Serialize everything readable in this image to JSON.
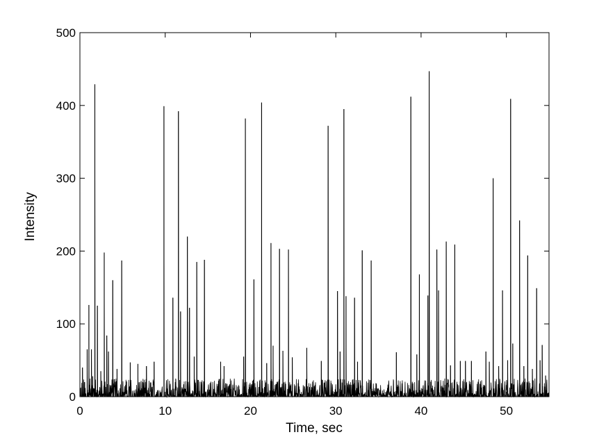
{
  "chart_data": {
    "type": "line",
    "title": "",
    "xlabel": "Time, sec",
    "ylabel": "Intensity",
    "xlim": [
      0,
      55
    ],
    "ylim": [
      0,
      500
    ],
    "xticks": [
      0,
      10,
      20,
      30,
      40,
      50
    ],
    "yticks": [
      0,
      100,
      200,
      300,
      400,
      500
    ],
    "xtick_labels": [
      "0",
      "10",
      "20",
      "30",
      "40",
      "50"
    ],
    "ytick_labels": [
      "0",
      "100",
      "200",
      "300",
      "400",
      "500"
    ],
    "grid": false,
    "legend": "none",
    "line_color": "#000000",
    "baseline_noise_max": 25,
    "series": [
      {
        "spikes": [
          {
            "x": 0.3,
            "y": 40
          },
          {
            "x": 0.55,
            "y": 20
          },
          {
            "x": 0.85,
            "y": 65
          },
          {
            "x": 1.05,
            "y": 126
          },
          {
            "x": 1.35,
            "y": 65
          },
          {
            "x": 1.5,
            "y": 28
          },
          {
            "x": 1.75,
            "y": 429
          },
          {
            "x": 2.05,
            "y": 125
          },
          {
            "x": 2.45,
            "y": 35
          },
          {
            "x": 2.85,
            "y": 198
          },
          {
            "x": 3.15,
            "y": 84
          },
          {
            "x": 3.35,
            "y": 62
          },
          {
            "x": 3.85,
            "y": 160
          },
          {
            "x": 4.35,
            "y": 38
          },
          {
            "x": 4.9,
            "y": 187
          },
          {
            "x": 5.9,
            "y": 47
          },
          {
            "x": 6.8,
            "y": 45
          },
          {
            "x": 7.8,
            "y": 42
          },
          {
            "x": 8.7,
            "y": 48
          },
          {
            "x": 9.85,
            "y": 399
          },
          {
            "x": 10.9,
            "y": 136
          },
          {
            "x": 11.55,
            "y": 392
          },
          {
            "x": 11.8,
            "y": 117
          },
          {
            "x": 12.6,
            "y": 220
          },
          {
            "x": 12.85,
            "y": 122
          },
          {
            "x": 13.4,
            "y": 55
          },
          {
            "x": 13.7,
            "y": 185
          },
          {
            "x": 14.6,
            "y": 188
          },
          {
            "x": 16.5,
            "y": 48
          },
          {
            "x": 16.9,
            "y": 42
          },
          {
            "x": 19.2,
            "y": 55
          },
          {
            "x": 19.4,
            "y": 382
          },
          {
            "x": 20.4,
            "y": 161
          },
          {
            "x": 21.3,
            "y": 404
          },
          {
            "x": 21.9,
            "y": 46
          },
          {
            "x": 22.4,
            "y": 211
          },
          {
            "x": 22.65,
            "y": 70
          },
          {
            "x": 23.4,
            "y": 203
          },
          {
            "x": 23.8,
            "y": 63
          },
          {
            "x": 24.45,
            "y": 202
          },
          {
            "x": 24.9,
            "y": 54
          },
          {
            "x": 26.6,
            "y": 67
          },
          {
            "x": 28.3,
            "y": 49
          },
          {
            "x": 29.1,
            "y": 372
          },
          {
            "x": 30.2,
            "y": 145
          },
          {
            "x": 30.5,
            "y": 62
          },
          {
            "x": 30.95,
            "y": 395
          },
          {
            "x": 31.2,
            "y": 138
          },
          {
            "x": 32.2,
            "y": 136
          },
          {
            "x": 32.55,
            "y": 48
          },
          {
            "x": 33.1,
            "y": 201
          },
          {
            "x": 34.15,
            "y": 187
          },
          {
            "x": 37.1,
            "y": 61
          },
          {
            "x": 38.8,
            "y": 412
          },
          {
            "x": 39.5,
            "y": 58
          },
          {
            "x": 39.8,
            "y": 168
          },
          {
            "x": 40.8,
            "y": 139
          },
          {
            "x": 40.95,
            "y": 447
          },
          {
            "x": 41.85,
            "y": 202
          },
          {
            "x": 42.05,
            "y": 146
          },
          {
            "x": 42.95,
            "y": 213
          },
          {
            "x": 43.45,
            "y": 43
          },
          {
            "x": 43.95,
            "y": 209
          },
          {
            "x": 44.6,
            "y": 49
          },
          {
            "x": 45.2,
            "y": 49
          },
          {
            "x": 45.9,
            "y": 49
          },
          {
            "x": 47.6,
            "y": 62
          },
          {
            "x": 48.0,
            "y": 48
          },
          {
            "x": 48.45,
            "y": 300
          },
          {
            "x": 49.1,
            "y": 42
          },
          {
            "x": 49.55,
            "y": 146
          },
          {
            "x": 50.15,
            "y": 50
          },
          {
            "x": 50.5,
            "y": 409
          },
          {
            "x": 50.75,
            "y": 73
          },
          {
            "x": 51.55,
            "y": 242
          },
          {
            "x": 52.05,
            "y": 42
          },
          {
            "x": 52.5,
            "y": 194
          },
          {
            "x": 53.05,
            "y": 38
          },
          {
            "x": 53.55,
            "y": 149
          },
          {
            "x": 53.95,
            "y": 50
          },
          {
            "x": 54.2,
            "y": 71
          },
          {
            "x": 54.6,
            "y": 29
          }
        ]
      }
    ]
  }
}
